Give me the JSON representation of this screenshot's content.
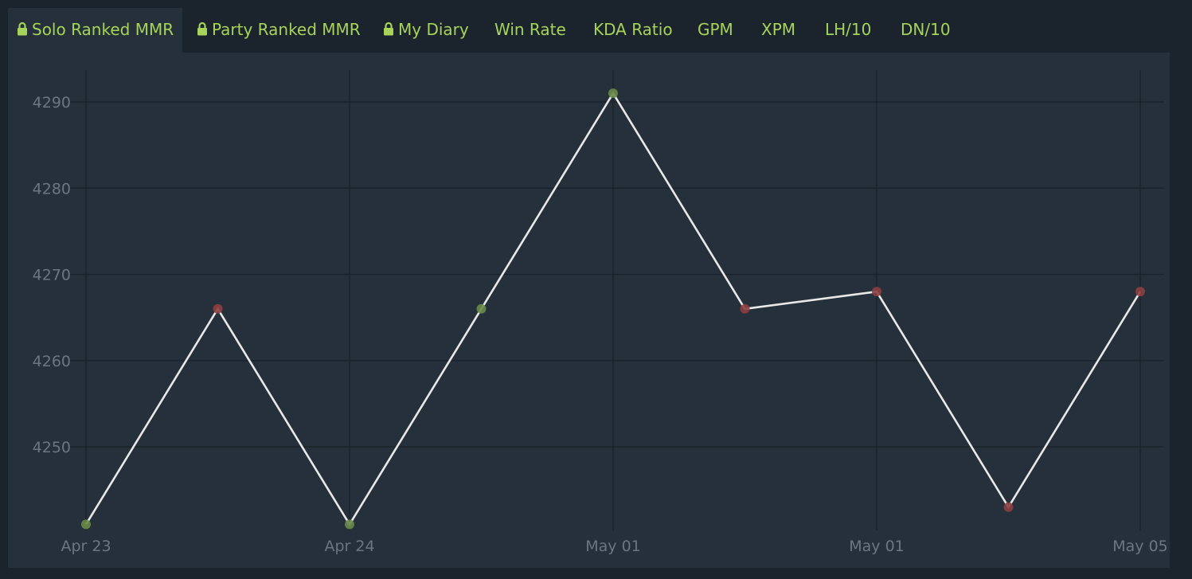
{
  "tabs": [
    {
      "label": "Solo Ranked MMR",
      "locked": true,
      "active": true
    },
    {
      "label": "Party Ranked MMR",
      "locked": true,
      "active": false
    },
    {
      "label": "My Diary",
      "locked": true,
      "active": false
    },
    {
      "label": "Win Rate",
      "locked": false,
      "active": false
    },
    {
      "label": "KDA Ratio",
      "locked": false,
      "active": false
    },
    {
      "label": "GPM",
      "locked": false,
      "active": false
    },
    {
      "label": "XPM",
      "locked": false,
      "active": false
    },
    {
      "label": "LH/10",
      "locked": false,
      "active": false
    },
    {
      "label": "DN/10",
      "locked": false,
      "active": false
    }
  ],
  "colors": {
    "accent": "#a7d35a",
    "line": "#e8e8e8",
    "win_point": "#6a8a48",
    "loss_point": "#8c3f40",
    "grid": "#1a2128",
    "tick_text": "#6b7680"
  },
  "chart_data": {
    "type": "line",
    "title": "",
    "xlabel": "",
    "ylabel": "",
    "ylim": [
      4240,
      4292
    ],
    "yticks": [
      4250,
      4260,
      4270,
      4280,
      4290
    ],
    "x_tick_labels": [
      "Apr 23",
      "Apr 24",
      "May 01",
      "May 01",
      "May 05"
    ],
    "grid": true,
    "series": [
      {
        "values": [
          4241,
          4266,
          4241,
          4266,
          4291,
          4266,
          4268,
          4243,
          4268
        ],
        "outcomes": [
          "win",
          "loss",
          "win",
          "win",
          "win",
          "loss",
          "loss",
          "loss",
          "loss"
        ]
      }
    ]
  }
}
